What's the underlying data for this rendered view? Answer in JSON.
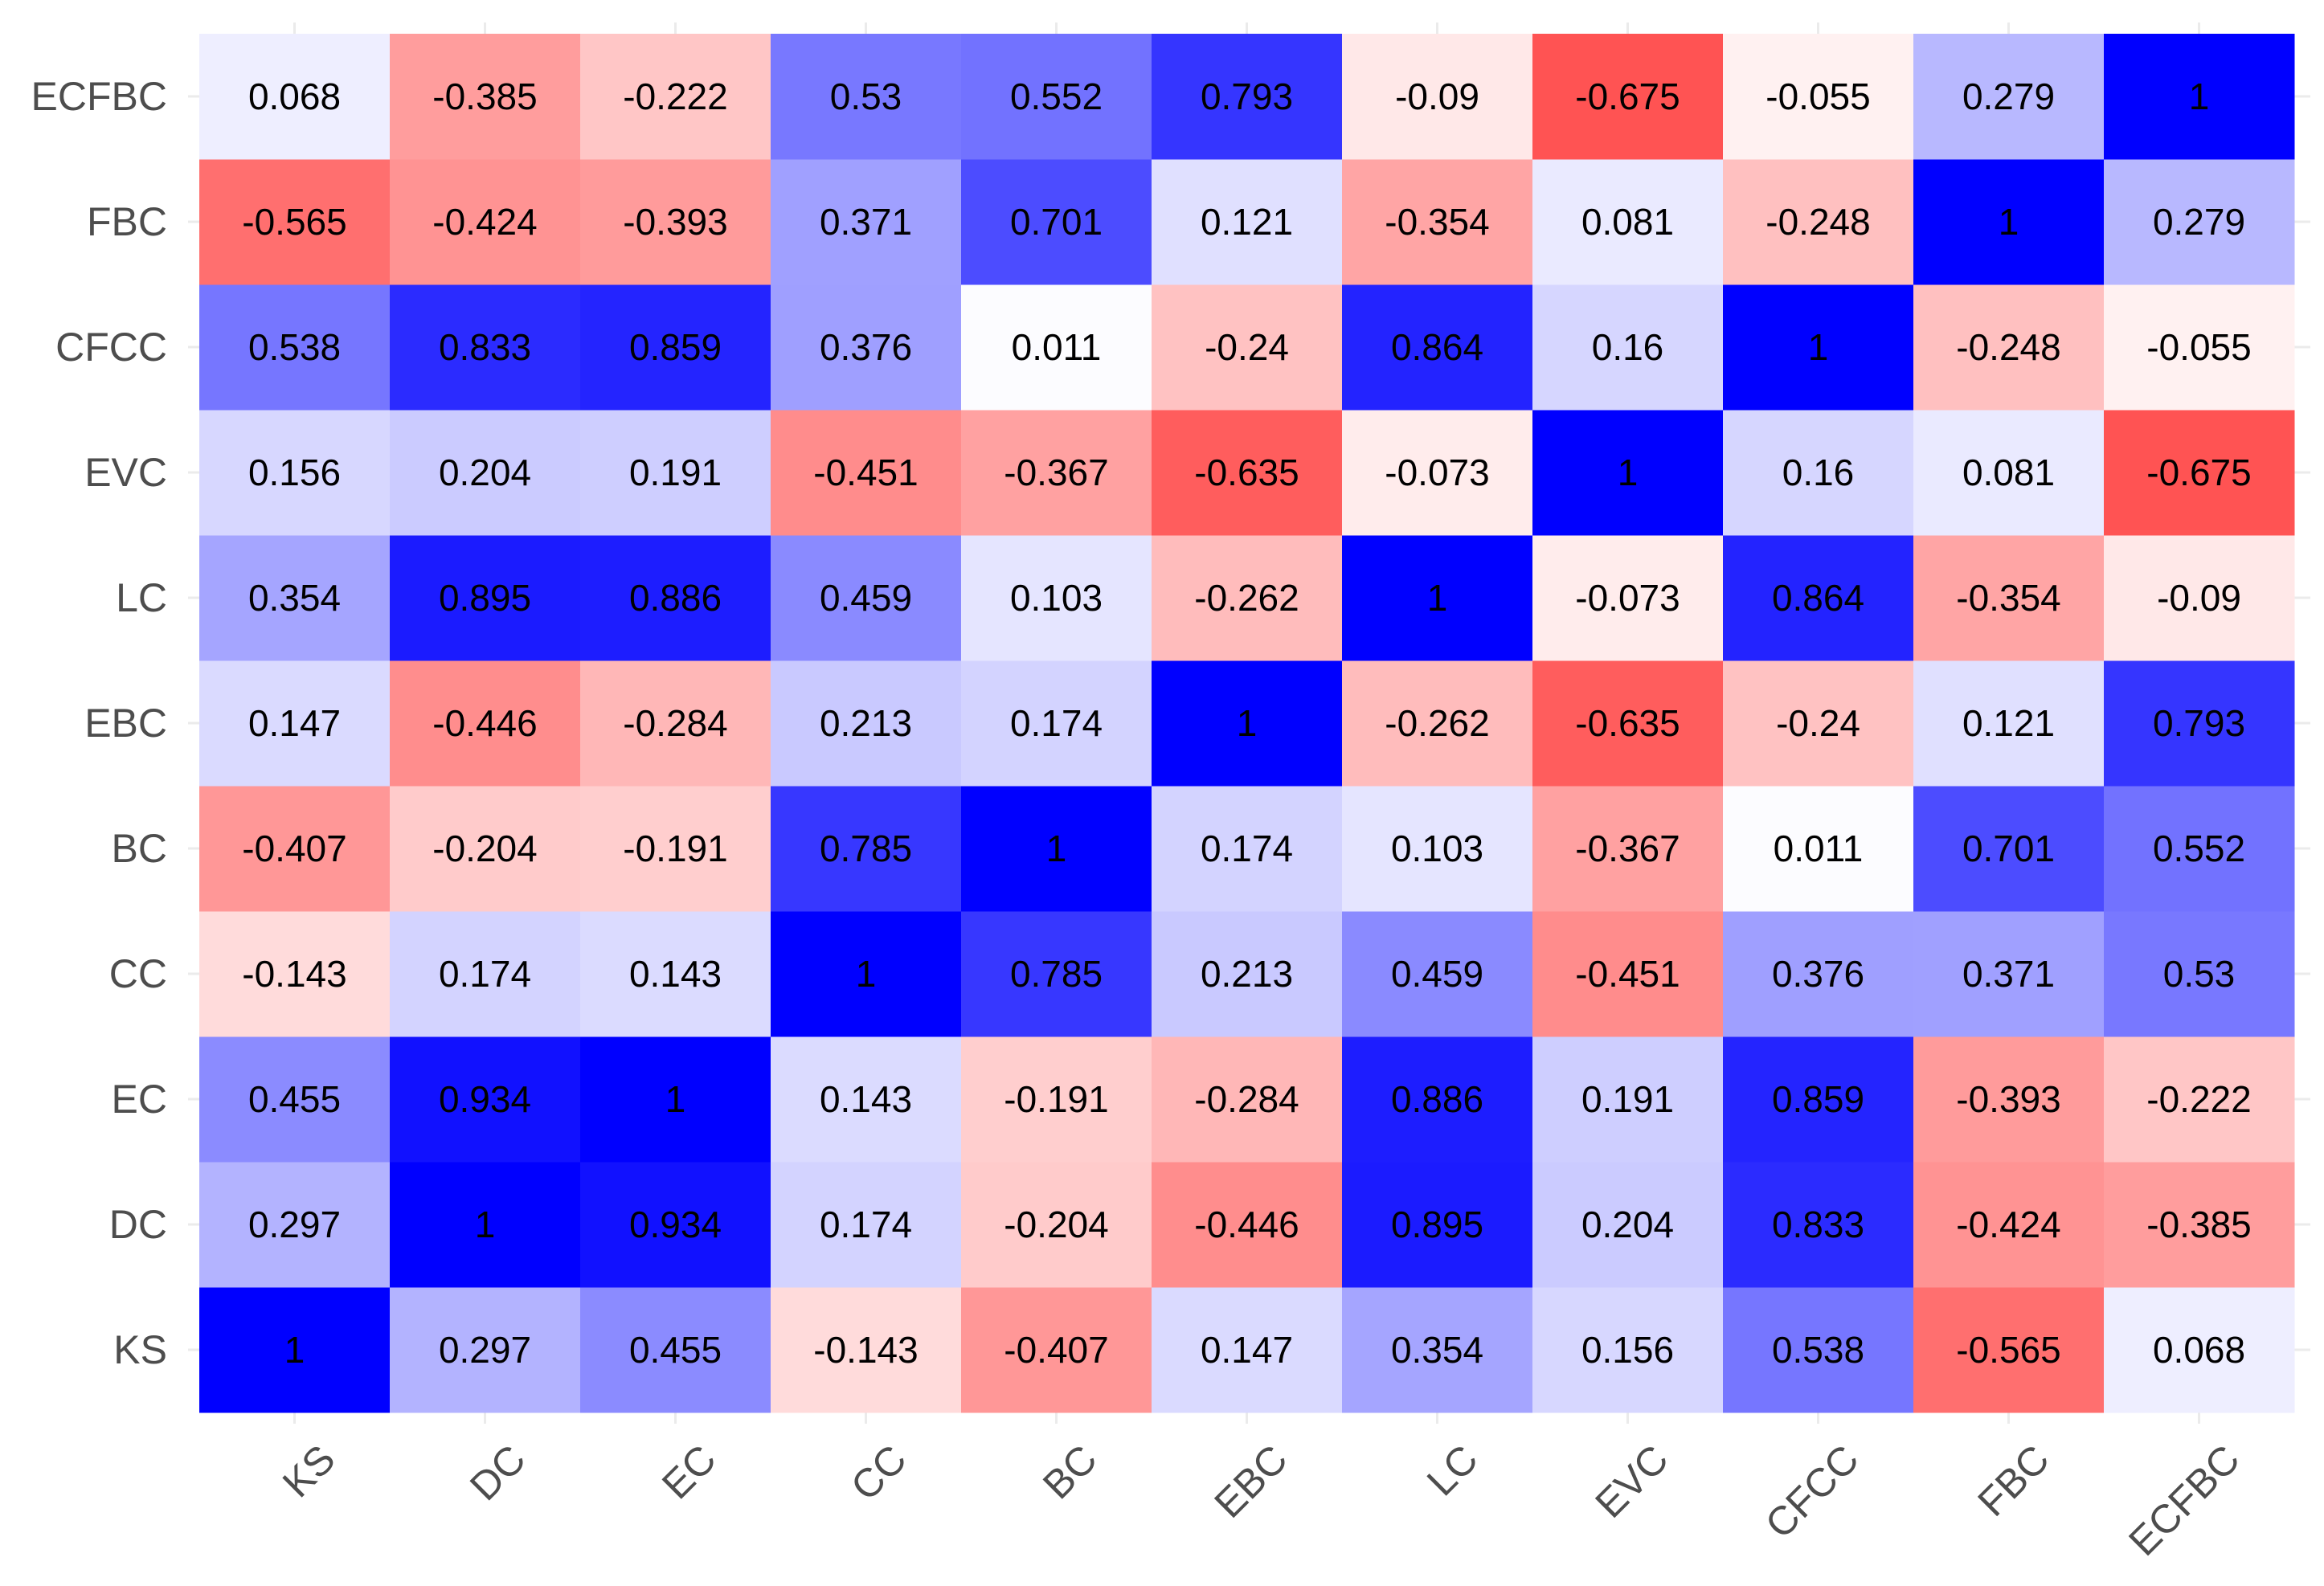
{
  "chart_data": {
    "type": "heatmap",
    "title": "",
    "xlabel": "",
    "ylabel": "",
    "categories": [
      "KS",
      "DC",
      "EC",
      "CC",
      "BC",
      "EBC",
      "LC",
      "EVC",
      "CFCC",
      "FBC",
      "ECFBC"
    ],
    "value_range": [
      -1,
      1
    ],
    "colors": {
      "low": "#ff0000",
      "mid": "#ffffff",
      "high": "#0000ff"
    },
    "matrix": [
      [
        1,
        0.297,
        0.455,
        -0.143,
        -0.407,
        0.147,
        0.354,
        0.156,
        0.538,
        -0.565,
        0.068
      ],
      [
        0.297,
        1,
        0.934,
        0.174,
        -0.204,
        -0.446,
        0.895,
        0.204,
        0.833,
        -0.424,
        -0.385
      ],
      [
        0.455,
        0.934,
        1,
        0.143,
        -0.191,
        -0.284,
        0.886,
        0.191,
        0.859,
        -0.393,
        -0.222
      ],
      [
        -0.143,
        0.174,
        0.143,
        1,
        0.785,
        0.213,
        0.459,
        -0.451,
        0.376,
        0.371,
        0.53
      ],
      [
        -0.407,
        -0.204,
        -0.191,
        0.785,
        1,
        0.174,
        0.103,
        -0.367,
        0.011,
        0.701,
        0.552
      ],
      [
        0.147,
        -0.446,
        -0.284,
        0.213,
        0.174,
        1,
        -0.262,
        -0.635,
        -0.24,
        0.121,
        0.793
      ],
      [
        0.354,
        0.895,
        0.886,
        0.459,
        0.103,
        -0.262,
        1,
        -0.073,
        0.864,
        -0.354,
        -0.09
      ],
      [
        0.156,
        0.204,
        0.191,
        -0.451,
        -0.367,
        -0.635,
        -0.073,
        1,
        0.16,
        0.081,
        -0.675
      ],
      [
        0.538,
        0.833,
        0.859,
        0.376,
        0.011,
        -0.24,
        0.864,
        0.16,
        1,
        -0.248,
        -0.055
      ],
      [
        -0.565,
        -0.424,
        -0.393,
        0.371,
        0.701,
        0.121,
        -0.354,
        0.081,
        -0.248,
        1,
        0.279
      ],
      [
        0.068,
        -0.385,
        -0.222,
        0.53,
        0.552,
        0.793,
        -0.09,
        -0.675,
        -0.055,
        0.279,
        1
      ]
    ]
  }
}
